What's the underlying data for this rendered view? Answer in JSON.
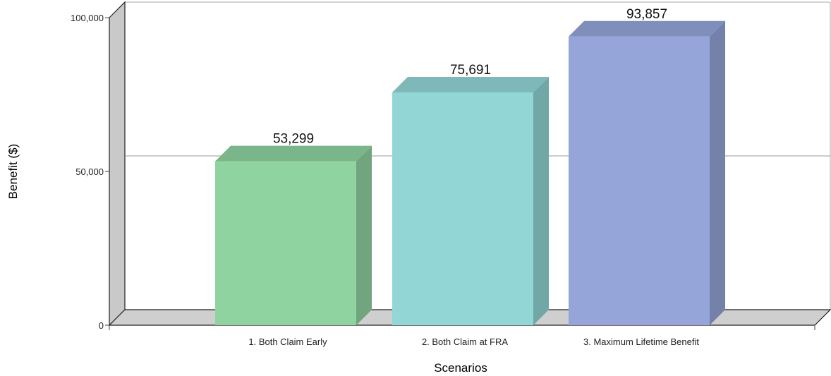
{
  "chart_data": {
    "type": "bar",
    "title": "",
    "xlabel": "Scenarios",
    "ylabel": "Benefit ($)",
    "ylim": [
      0,
      100000
    ],
    "y_ticks": [
      0,
      50000,
      100000
    ],
    "y_tick_labels": [
      "0",
      "50,000",
      "100,000"
    ],
    "categories": [
      "1.  Both Claim Early",
      "2.  Both Claim at FRA",
      "3.  Maximum Lifetime Benefit"
    ],
    "values": [
      53299,
      75691,
      93857
    ],
    "value_labels": [
      "53,299",
      "75,691",
      "93,857"
    ],
    "colors": [
      "#8fd4a0",
      "#92d6d6",
      "#95a5d9"
    ],
    "grid": true,
    "legend": "none",
    "style": "3d"
  }
}
